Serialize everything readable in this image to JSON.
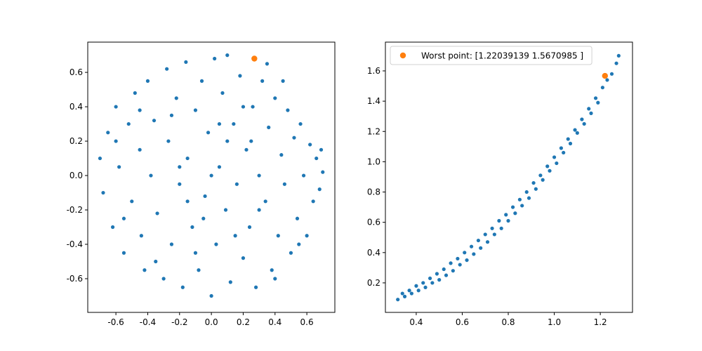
{
  "chart_data": [
    {
      "type": "scatter",
      "xlim": [
        -0.777,
        0.776
      ],
      "ylim": [
        -0.796,
        0.776
      ],
      "xticks": [
        -0.6,
        -0.4,
        -0.2,
        {
          "value": 0,
          "label": "0.0"
        },
        0.2,
        0.4,
        0.6
      ],
      "yticks": [
        -0.6,
        -0.4,
        -0.2,
        {
          "value": 0,
          "label": "0.0"
        },
        0.2,
        0.4,
        0.6
      ],
      "series": [
        {
          "color": "#1f77b4",
          "x": [
            -0.7,
            -0.68,
            -0.65,
            -0.62,
            -0.6,
            -0.58,
            -0.55,
            -0.52,
            -0.5,
            -0.48,
            -0.45,
            -0.44,
            -0.42,
            -0.4,
            -0.38,
            -0.36,
            -0.34,
            -0.3,
            -0.28,
            -0.27,
            -0.25,
            -0.22,
            -0.2,
            -0.18,
            -0.16,
            -0.15,
            -0.12,
            -0.1,
            -0.08,
            -0.06,
            -0.04,
            -0.02,
            0.0,
            0.02,
            0.03,
            0.05,
            0.07,
            0.09,
            0.1,
            0.12,
            0.14,
            0.16,
            0.18,
            0.2,
            0.22,
            0.24,
            0.26,
            0.28,
            0.3,
            0.32,
            0.34,
            0.36,
            0.38,
            0.4,
            0.42,
            0.44,
            0.46,
            0.48,
            0.5,
            0.52,
            0.54,
            0.56,
            0.58,
            0.6,
            0.62,
            0.64,
            0.66,
            0.68,
            0.7,
            0.69,
            0.35,
            -0.2,
            -0.05,
            0.15,
            0.25,
            -0.35,
            0.45,
            -0.55,
            0.55,
            -0.6,
            0.05,
            -0.1,
            0.3,
            -0.25,
            0.1,
            -0.45,
            0.4,
            -0.15,
            0.2,
            0.0
          ],
          "values": [
            0.1,
            -0.1,
            0.25,
            -0.3,
            0.4,
            0.05,
            -0.45,
            0.3,
            -0.15,
            0.48,
            0.15,
            -0.35,
            -0.55,
            0.55,
            0.0,
            0.32,
            -0.22,
            -0.6,
            0.62,
            0.2,
            -0.4,
            0.45,
            -0.05,
            -0.65,
            0.66,
            0.1,
            -0.3,
            0.38,
            -0.55,
            0.55,
            -0.12,
            0.25,
            -0.7,
            0.68,
            -0.4,
            0.05,
            0.48,
            -0.2,
            0.7,
            -0.62,
            0.3,
            -0.05,
            0.58,
            -0.48,
            0.15,
            -0.3,
            0.4,
            -0.65,
            0.0,
            0.55,
            -0.15,
            0.28,
            -0.55,
            0.45,
            -0.35,
            0.12,
            -0.05,
            0.38,
            -0.45,
            0.22,
            -0.25,
            0.3,
            0.0,
            -0.35,
            0.18,
            -0.15,
            0.1,
            -0.08,
            0.02,
            0.15,
            0.65,
            0.05,
            -0.25,
            -0.35,
            0.2,
            -0.5,
            0.55,
            -0.25,
            -0.4,
            0.2,
            0.3,
            -0.45,
            -0.2,
            0.35,
            0.2,
            0.38,
            -0.6,
            -0.15,
            0.4,
            0.0
          ]
        },
        {
          "color": "#ff7f0e",
          "x": [
            0.27
          ],
          "values": [
            0.68
          ]
        }
      ]
    },
    {
      "type": "scatter",
      "xlim": [
        0.266,
        1.34
      ],
      "ylim": [
        0.005,
        1.79
      ],
      "xticks": [
        0.4,
        0.6,
        0.8,
        {
          "value": 1,
          "label": "1.0"
        },
        1.2
      ],
      "yticks": [
        0.2,
        0.4,
        0.6,
        0.8,
        {
          "value": 1,
          "label": "1.0"
        },
        1.2,
        1.4,
        1.6
      ],
      "legend": "upper left",
      "series": [
        {
          "color": "#1f77b4",
          "x": [
            0.32,
            0.34,
            0.35,
            0.37,
            0.38,
            0.4,
            0.41,
            0.43,
            0.44,
            0.46,
            0.47,
            0.49,
            0.5,
            0.52,
            0.53,
            0.55,
            0.56,
            0.58,
            0.59,
            0.61,
            0.62,
            0.64,
            0.65,
            0.67,
            0.68,
            0.7,
            0.71,
            0.73,
            0.74,
            0.76,
            0.77,
            0.79,
            0.8,
            0.82,
            0.83,
            0.85,
            0.86,
            0.88,
            0.89,
            0.91,
            0.92,
            0.94,
            0.95,
            0.97,
            0.98,
            1.0,
            1.01,
            1.03,
            1.04,
            1.06,
            1.07,
            1.09,
            1.1,
            1.12,
            1.13,
            1.15,
            1.16,
            1.18,
            1.19,
            1.21,
            1.23,
            1.25,
            1.27,
            1.28
          ],
          "values": [
            0.09,
            0.13,
            0.11,
            0.15,
            0.13,
            0.18,
            0.15,
            0.2,
            0.17,
            0.23,
            0.2,
            0.26,
            0.22,
            0.29,
            0.25,
            0.33,
            0.28,
            0.36,
            0.32,
            0.4,
            0.35,
            0.44,
            0.39,
            0.48,
            0.43,
            0.52,
            0.47,
            0.56,
            0.52,
            0.61,
            0.56,
            0.65,
            0.61,
            0.7,
            0.66,
            0.75,
            0.71,
            0.8,
            0.76,
            0.86,
            0.82,
            0.91,
            0.88,
            0.97,
            0.94,
            1.03,
            0.99,
            1.09,
            1.06,
            1.15,
            1.12,
            1.21,
            1.19,
            1.28,
            1.25,
            1.35,
            1.32,
            1.42,
            1.39,
            1.49,
            1.54,
            1.58,
            1.65,
            1.7
          ]
        },
        {
          "name": "Worst point: [1.22039139 1.5670985 ]",
          "color": "#ff7f0e",
          "x": [
            1.22039139
          ],
          "values": [
            1.5670985
          ]
        }
      ]
    }
  ]
}
